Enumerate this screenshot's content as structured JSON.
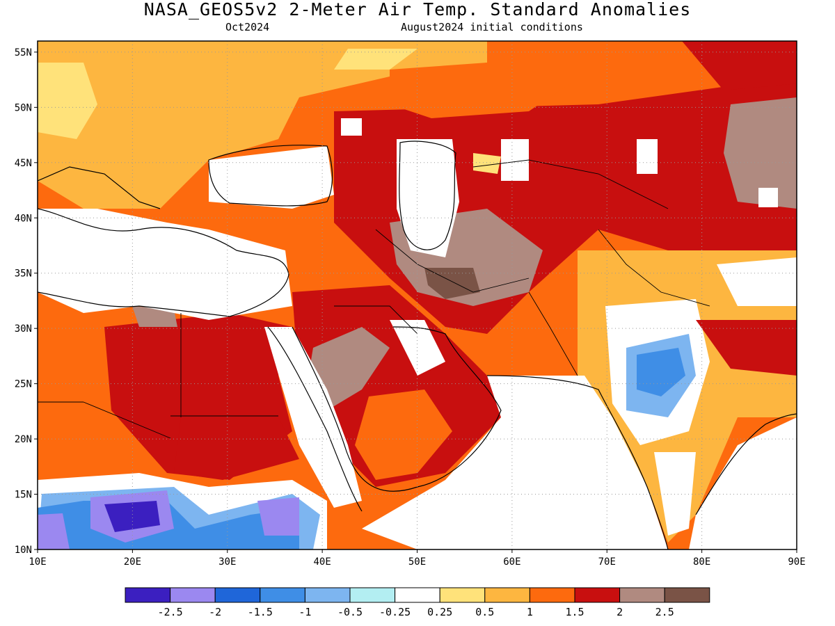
{
  "title": "NASA_GEOS5v2 2-Meter Air Temp. Standard Anomalies",
  "subtitle_left": "Oct2024",
  "subtitle_right": "August2024 initial conditions",
  "map": {
    "lon_range": [
      10,
      90
    ],
    "lat_range": [
      10,
      56
    ],
    "lat_ticks": [
      "10N",
      "15N",
      "20N",
      "25N",
      "30N",
      "35N",
      "40N",
      "45N",
      "50N",
      "55N"
    ],
    "lon_ticks": [
      "10E",
      "20E",
      "30E",
      "40E",
      "50E",
      "60E",
      "70E",
      "80E",
      "90E"
    ],
    "land_color": "#ffffff",
    "coast_color": "#000000",
    "grid": "dotted"
  },
  "legend": {
    "colors": [
      "#3b1fc0",
      "#9b88f0",
      "#1f66d9",
      "#3f8ee6",
      "#7db5f0",
      "#b3eef2",
      "#ffffff",
      "#ffe27a",
      "#fdb640",
      "#fd6a0e",
      "#c80f0f",
      "#b08a80",
      "#7a5346"
    ],
    "labels": [
      "-2.5",
      "-2",
      "-1.5",
      "-1",
      "-0.5",
      "-0.25",
      "0.25",
      "0.5",
      "1",
      "1.5",
      "2",
      "2.5"
    ]
  },
  "field_colors": {
    "v_neg2_5": "#3b1fc0",
    "v_neg2": "#9b88f0",
    "v_neg1_5": "#1f66d9",
    "v_neg1": "#3f8ee6",
    "v_neg0_5": "#7db5f0",
    "v_neg0_25": "#b3eef2",
    "v_pos0_5": "#ffe27a",
    "v_pos1": "#fdb640",
    "v_pos1_5": "#fd6a0e",
    "v_pos2": "#c80f0f",
    "v_pos2_5": "#b08a80",
    "v_pos3": "#7a5346"
  }
}
